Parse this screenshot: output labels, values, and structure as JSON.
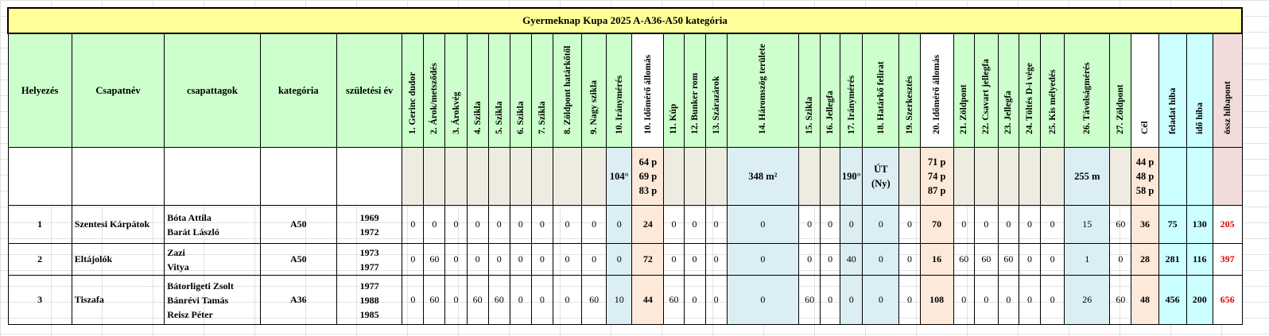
{
  "title": "Gyermeknap Kupa 2025 A-A36-A50 kategória",
  "headers": {
    "placement": "Helyezés",
    "team": "Csapatnév",
    "members": "csapattagok",
    "category": "kategória",
    "birth_year": "születési év",
    "task_error": "feladat hiba",
    "time_error": "idő hiba",
    "total": "össz hibapont"
  },
  "tasks": [
    {
      "label": "1. Gerinc dudor",
      "value": [],
      "tone": "grey"
    },
    {
      "label": "2. Árok/metsződés",
      "value": [],
      "tone": "grey"
    },
    {
      "label": "3. Árokvég",
      "value": [],
      "tone": "grey"
    },
    {
      "label": "4. Szikla",
      "value": [],
      "tone": "grey"
    },
    {
      "label": "5. Szikla",
      "value": [],
      "tone": "grey"
    },
    {
      "label": "6. Szikla",
      "value": [],
      "tone": "grey"
    },
    {
      "label": "7. Szikla",
      "value": [],
      "tone": "grey"
    },
    {
      "label": "8. Zöldpont határkőtől",
      "value": [],
      "tone": "grey"
    },
    {
      "label": "9. Nagy szikla",
      "value": [],
      "tone": "grey"
    },
    {
      "label": "10. Iránymérés",
      "value": [
        "104°"
      ],
      "tone": "blue"
    },
    {
      "label": "10. Időmérő állomás",
      "value": [
        "64 p",
        "69 p",
        "83 p"
      ],
      "tone": "peach"
    },
    {
      "label": "11. Kúp",
      "value": [],
      "tone": "grey"
    },
    {
      "label": "12. Bunker rom",
      "value": [],
      "tone": "grey"
    },
    {
      "label": "13. Szárazárok",
      "value": [],
      "tone": "grey"
    },
    {
      "label": "14. Háromszög területe",
      "value": [
        "348 m²"
      ],
      "tone": "blue"
    },
    {
      "label": "15. Szikla",
      "value": [],
      "tone": "grey"
    },
    {
      "label": "16. Jellegfa",
      "value": [],
      "tone": "grey"
    },
    {
      "label": "17. Iránymérés",
      "value": [
        "190°"
      ],
      "tone": "blue"
    },
    {
      "label": "18. Határkő felirat",
      "value": [
        "ÚT",
        "(Ny)"
      ],
      "tone": "blue"
    },
    {
      "label": "19. Szerkesztés",
      "value": [],
      "tone": "grey"
    },
    {
      "label": "20. Időmérő állomás",
      "value": [
        "71 p",
        "74 p",
        "87 p"
      ],
      "tone": "peach"
    },
    {
      "label": "21. Zöldpont",
      "value": [],
      "tone": "grey"
    },
    {
      "label": "22. Csavart jellegfa",
      "value": [],
      "tone": "grey"
    },
    {
      "label": "23. Jellegfa",
      "value": [],
      "tone": "grey"
    },
    {
      "label": "24. Töltés D-i vége",
      "value": [],
      "tone": "grey"
    },
    {
      "label": "25. Kis mélyedés",
      "value": [],
      "tone": "grey"
    },
    {
      "label": "26. Távolságmérés",
      "value": [
        "255 m"
      ],
      "tone": "blue"
    },
    {
      "label": "27. Zöldpont",
      "value": [],
      "tone": "grey"
    },
    {
      "label": "Cél",
      "value": [
        "44 p",
        "48 p",
        "58 p"
      ],
      "tone": "peach"
    }
  ],
  "rows": [
    {
      "place": "1",
      "team": "Szentesi Kárpátok",
      "members": [
        "Bóta Attila",
        "Barát László"
      ],
      "category": "A50",
      "years": [
        "1969",
        "1972"
      ],
      "scores": [
        "0",
        "0",
        "0",
        "0",
        "0",
        "0",
        "0",
        "0",
        "0",
        "0",
        "24",
        "0",
        "0",
        "0",
        "0",
        "0",
        "0",
        "0",
        "0",
        "0",
        "70",
        "0",
        "0",
        "0",
        "0",
        "0",
        "15",
        "60",
        "36"
      ],
      "task_error": "75",
      "time_error": "130",
      "total": "205"
    },
    {
      "place": "2",
      "team": "Eltájolók",
      "members": [
        "Zazi",
        "Vitya"
      ],
      "category": "A50",
      "years": [
        "1973",
        "1977"
      ],
      "scores": [
        "0",
        "60",
        "0",
        "0",
        "0",
        "0",
        "0",
        "0",
        "0",
        "0",
        "72",
        "0",
        "0",
        "0",
        "0",
        "0",
        "0",
        "40",
        "0",
        "0",
        "16",
        "60",
        "60",
        "60",
        "0",
        "0",
        "1",
        "0",
        "28"
      ],
      "task_error": "281",
      "time_error": "116",
      "total": "397"
    },
    {
      "place": "3",
      "team": "Tiszafa",
      "members": [
        "Bátorligeti Zsolt",
        "Bánrévi Tamás",
        "Reisz Péter"
      ],
      "category": "A36",
      "years": [
        "1977",
        "1988",
        "1985"
      ],
      "scores": [
        "0",
        "60",
        "0",
        "60",
        "60",
        "0",
        "0",
        "0",
        "60",
        "10",
        "44",
        "60",
        "0",
        "0",
        "0",
        "60",
        "0",
        "0",
        "0",
        "0",
        "108",
        "0",
        "0",
        "0",
        "0",
        "0",
        "26",
        "60",
        "48"
      ],
      "task_error": "456",
      "time_error": "200",
      "total": "656"
    }
  ]
}
